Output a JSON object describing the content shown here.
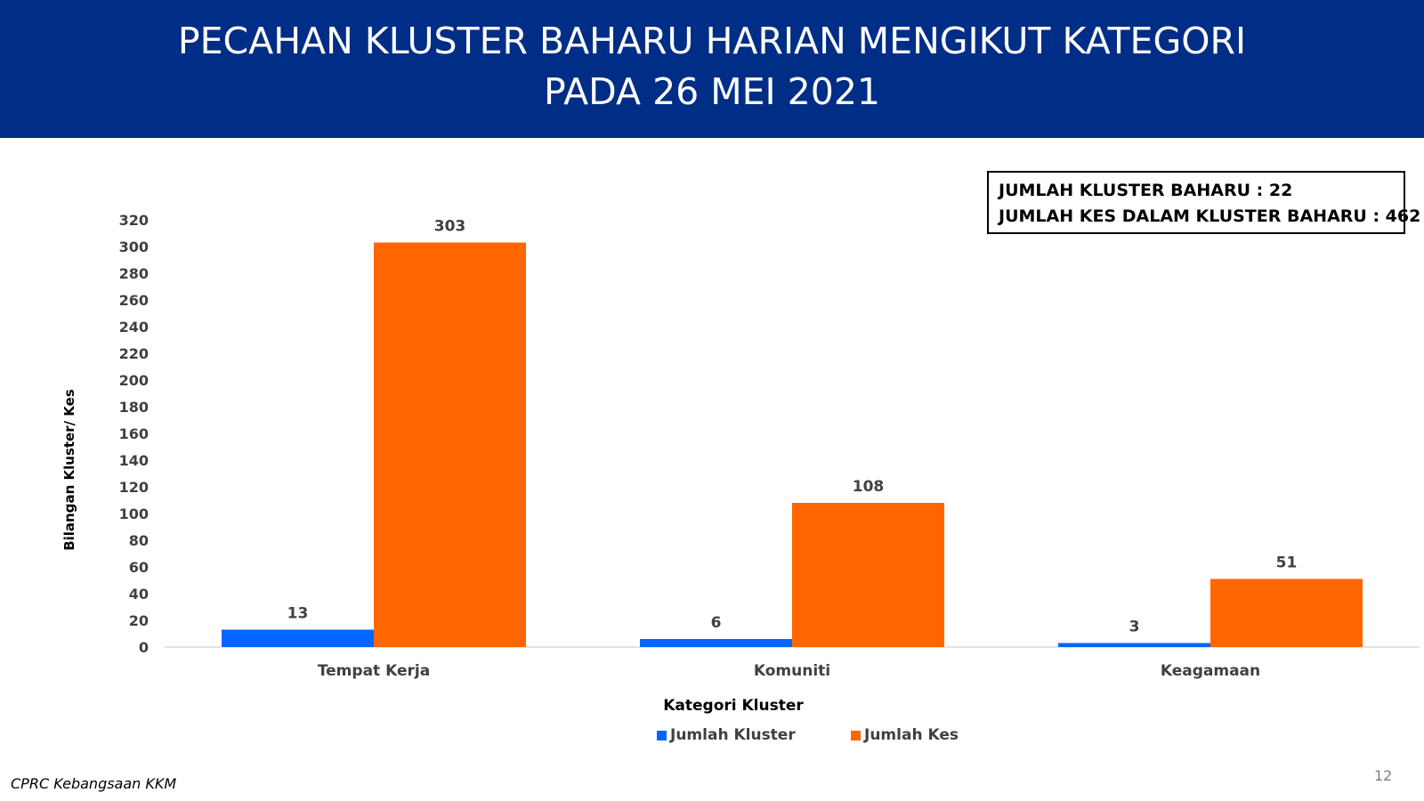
{
  "header": {
    "title_line1": "PECAHAN KLUSTER BAHARU HARIAN MENGIKUT KATEGORI",
    "title_line2": "PADA 26 MEI 2021"
  },
  "summary": {
    "line1": "JUMLAH KLUSTER BAHARU : 22",
    "line2": "JUMLAH KES DALAM KLUSTER BAHARU : 462"
  },
  "footer": {
    "source": "CPRC Kebangsaan KKM",
    "page_number": "12"
  },
  "colors": {
    "header_bg": "#002d86",
    "series_kluster": "#0066ff",
    "series_kes": "#ff6600"
  },
  "chart_data": {
    "type": "bar",
    "title": "PECAHAN KLUSTER BAHARU HARIAN MENGIKUT KATEGORI PADA 26 MEI 2021",
    "xlabel": "Kategori Kluster",
    "ylabel": "Bilangan Kluster/ Kes",
    "categories": [
      "Tempat Kerja",
      "Komuniti",
      "Keagamaan"
    ],
    "series": [
      {
        "name": "Jumlah Kluster",
        "color": "#0066ff",
        "values": [
          13,
          6,
          3
        ]
      },
      {
        "name": "Jumlah Kes",
        "color": "#ff6600",
        "values": [
          303,
          108,
          51
        ]
      }
    ],
    "ylim": [
      0,
      320
    ],
    "yticks": [
      0,
      20,
      40,
      60,
      80,
      100,
      120,
      140,
      160,
      180,
      200,
      220,
      240,
      260,
      280,
      300,
      320
    ],
    "data_labels": true,
    "grid": false,
    "legend_position": "bottom"
  }
}
